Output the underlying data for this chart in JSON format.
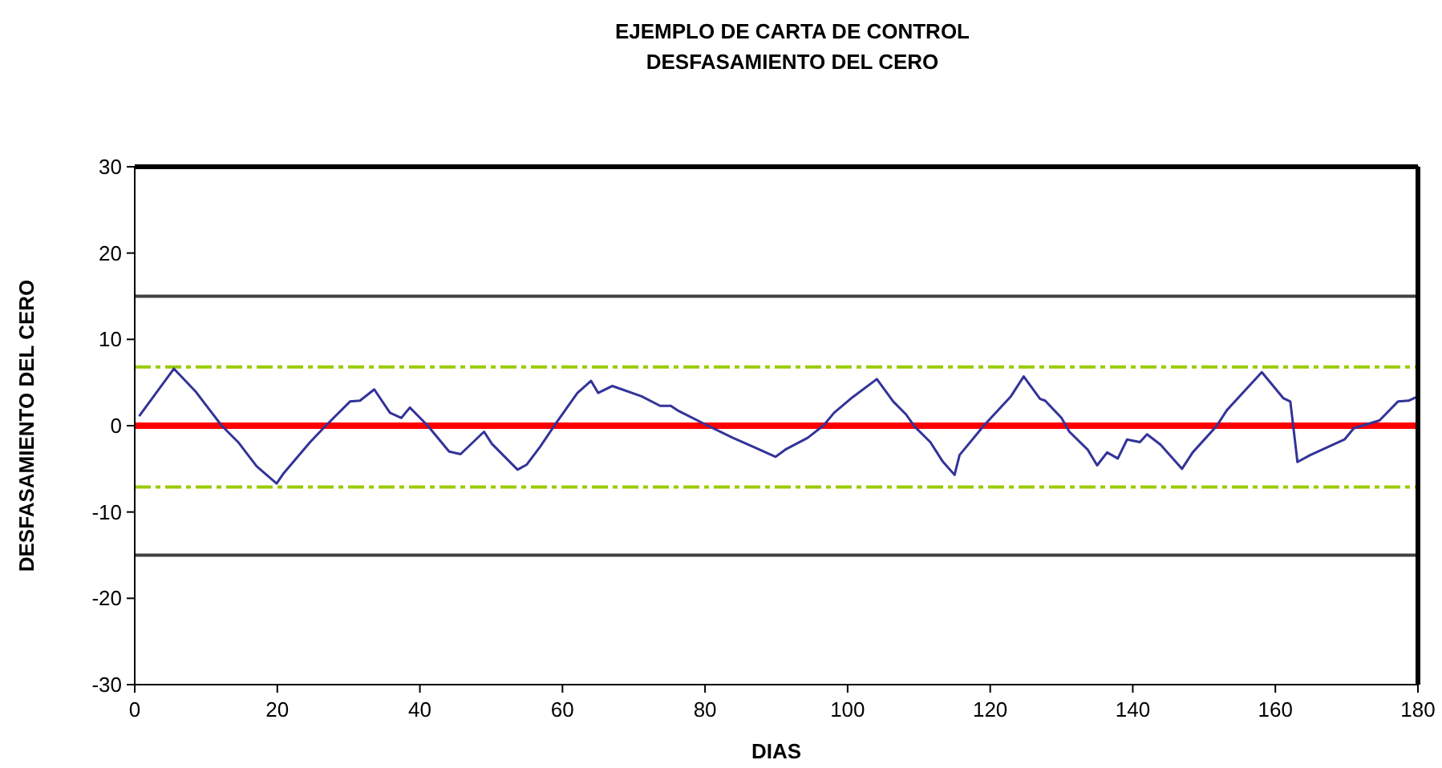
{
  "chart_data": {
    "type": "line",
    "title": "EJEMPLO DE CARTA DE CONTROL",
    "subtitle": "DESFASAMIENTO DEL CERO",
    "xlabel": "DIAS",
    "ylabel": "DESFASAMIENTO DEL CERO",
    "xlim": [
      0,
      180
    ],
    "xticks": [
      0,
      20,
      40,
      60,
      80,
      100,
      120,
      140,
      160,
      180
    ],
    "ylim": [
      -30,
      30
    ],
    "yticks": [
      -30,
      -20,
      -10,
      0,
      10,
      20,
      30
    ],
    "grid": false,
    "marker": "none",
    "line_style": "solid",
    "ref_lines": [
      {
        "axis": "y",
        "value": 15,
        "color": "#404040",
        "line_style": "solid"
      },
      {
        "axis": "y",
        "value": -15,
        "color": "#404040",
        "line_style": "solid"
      },
      {
        "axis": "y",
        "value": 6.8,
        "color": "#99cc00",
        "line_style": "dashdot"
      },
      {
        "axis": "y",
        "value": -7.1,
        "color": "#99cc00",
        "line_style": "dashdot"
      },
      {
        "axis": "y",
        "value": 0,
        "color": "#ff0000",
        "line_style": "solid"
      }
    ],
    "series": [
      {
        "color": "#333399",
        "x": [
          0.7,
          5.5,
          8.5,
          12.2,
          14.5,
          17.1,
          19.9,
          20.9,
          24.6,
          26.8,
          30.2,
          31.6,
          33.6,
          35.8,
          37.4,
          38.6,
          41.1,
          44.1,
          45.7,
          49.0,
          50.1,
          53.7,
          55.0,
          56.9,
          59.1,
          62.1,
          64.0,
          65.0,
          67.0,
          71.1,
          73.7,
          75.2,
          76.3,
          80.4,
          83.9,
          86.9,
          89.9,
          91.4,
          94.4,
          96.6,
          98.1,
          100.7,
          104.1,
          106.4,
          108.2,
          109.4,
          111.6,
          113.3,
          115.0,
          115.7,
          119.1,
          122.9,
          124.7,
          127.0,
          127.7,
          130.0,
          131.1,
          133.7,
          135.0,
          136.4,
          137.9,
          139.2,
          141.0,
          142.0,
          143.9,
          146.9,
          148.4,
          151.7,
          153.2,
          158.1,
          161.1,
          162.1,
          163.1,
          164.9,
          169.7,
          171.0,
          174.6,
          177.2,
          178.7,
          180
        ],
        "values": [
          1.2,
          6.6,
          4.0,
          0,
          -1.9,
          -4.7,
          -6.7,
          -5.5,
          -1.9,
          0,
          2.8,
          2.9,
          4.2,
          1.5,
          0.9,
          2.1,
          0,
          -3.0,
          -3.3,
          -0.7,
          -2.1,
          -5.1,
          -4.5,
          -2.4,
          0.3,
          3.8,
          5.2,
          3.8,
          4.6,
          3.4,
          2.3,
          2.3,
          1.7,
          0,
          -1.4,
          -2.5,
          -3.6,
          -2.7,
          -1.4,
          0,
          1.5,
          3.3,
          5.4,
          2.8,
          1.3,
          -0.1,
          -1.9,
          -4.1,
          -5.7,
          -3.4,
          0,
          3.4,
          5.7,
          3.1,
          2.9,
          0.9,
          -0.7,
          -2.8,
          -4.6,
          -3.1,
          -3.8,
          -1.6,
          -1.9,
          -1.0,
          -2.2,
          -5.0,
          -3.1,
          -0.1,
          1.8,
          6.2,
          3.2,
          2.8,
          -4.2,
          -3.4,
          -1.6,
          -0.3,
          0.6,
          2.8,
          2.9,
          3.4
        ]
      }
    ]
  }
}
